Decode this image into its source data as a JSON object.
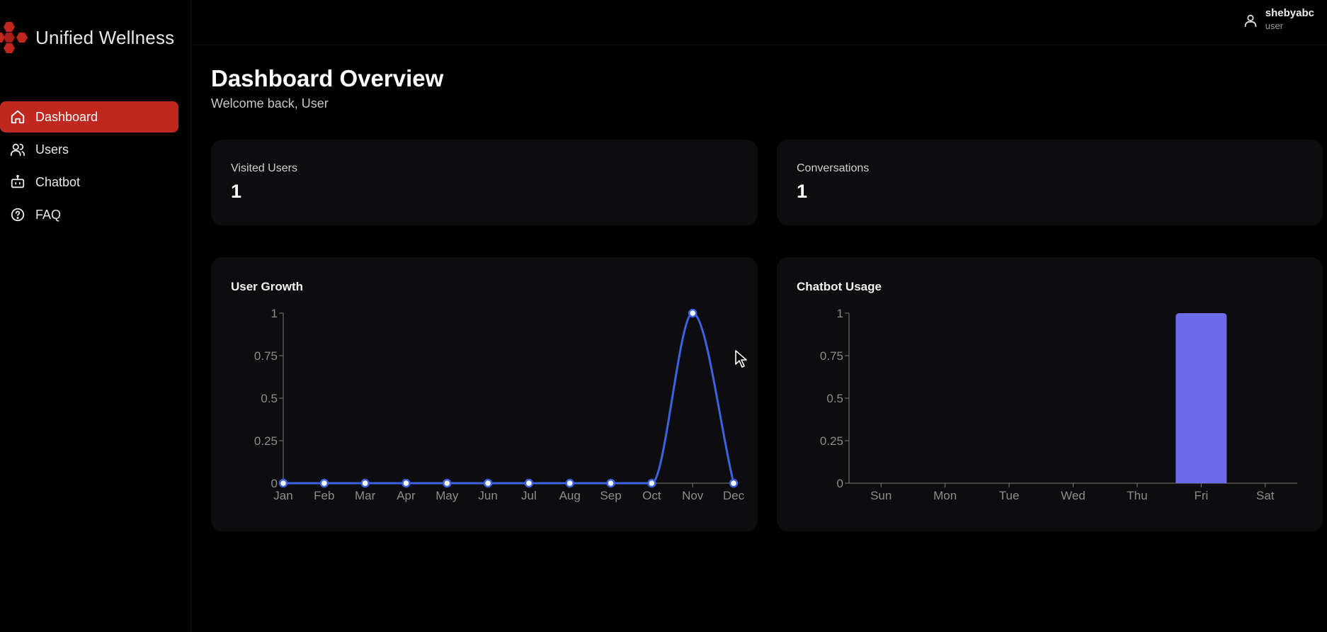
{
  "brand": {
    "name": "Unified Wellness",
    "logo_color": "#c0281f"
  },
  "user": {
    "name": "shebyabc",
    "role": "user",
    "icon": "user-icon"
  },
  "nav": {
    "items": [
      {
        "label": "Dashboard",
        "icon": "home-icon",
        "active": true
      },
      {
        "label": "Users",
        "icon": "users-icon",
        "active": false
      },
      {
        "label": "Chatbot",
        "icon": "bot-icon",
        "active": false
      },
      {
        "label": "FAQ",
        "icon": "help-circle-icon",
        "active": false
      }
    ],
    "active_color": "#c0281f"
  },
  "header": {
    "title": "Dashboard Overview",
    "subtitle": "Welcome back, User"
  },
  "stats": [
    {
      "label": "Visited Users",
      "value": "1"
    },
    {
      "label": "Conversations",
      "value": "1"
    }
  ],
  "chart_data": [
    {
      "type": "line",
      "title": "User Growth",
      "categories": [
        "Jan",
        "Feb",
        "Mar",
        "Apr",
        "May",
        "Jun",
        "Jul",
        "Aug",
        "Sep",
        "Oct",
        "Nov",
        "Dec"
      ],
      "values": [
        0,
        0,
        0,
        0,
        0,
        0,
        0,
        0,
        0,
        0,
        1,
        0
      ],
      "y_ticks": [
        "0",
        "0.25",
        "0.5",
        "0.75",
        "1"
      ],
      "ylim": [
        0,
        1
      ],
      "grid": false,
      "line_color": "#3b63e0"
    },
    {
      "type": "bar",
      "title": "Chatbot Usage",
      "categories": [
        "Sun",
        "Mon",
        "Tue",
        "Wed",
        "Thu",
        "Fri",
        "Sat"
      ],
      "values": [
        0,
        0,
        0,
        0,
        0,
        1,
        0
      ],
      "y_ticks": [
        "0",
        "0.25",
        "0.5",
        "0.75",
        "1"
      ],
      "ylim": [
        0,
        1
      ],
      "grid": false,
      "bar_color": "#6d6bea"
    }
  ]
}
